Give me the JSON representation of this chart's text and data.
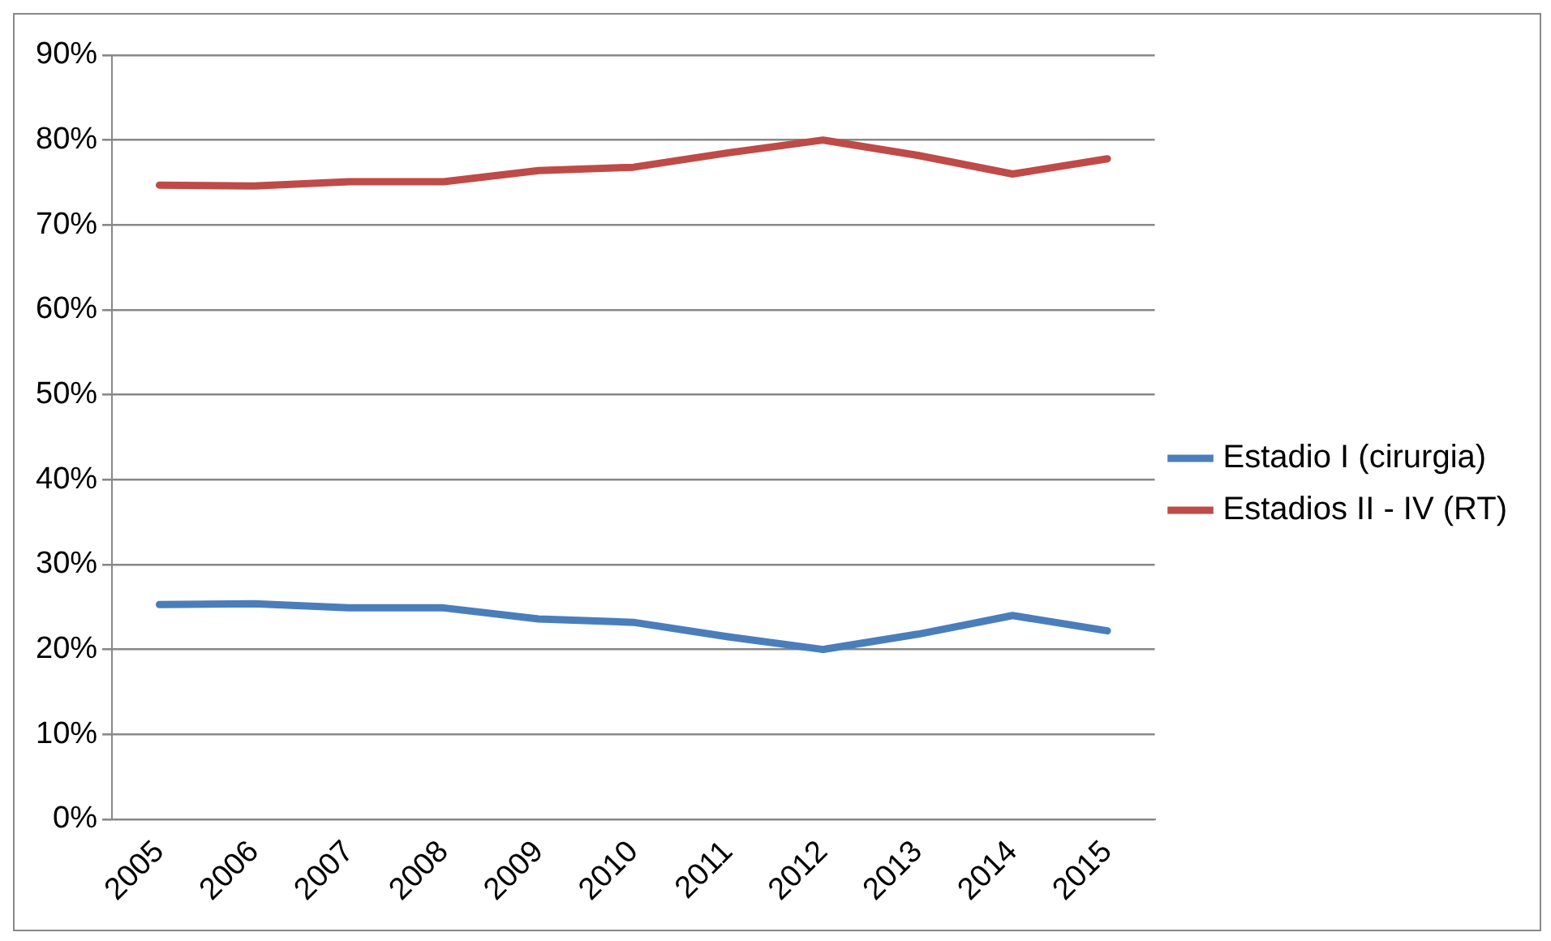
{
  "chart_data": {
    "type": "line",
    "categories": [
      "2005",
      "2006",
      "2007",
      "2008",
      "2009",
      "2010",
      "2011",
      "2012",
      "2013",
      "2014",
      "2015"
    ],
    "series": [
      {
        "name": "Estadio I (cirurgia)",
        "color": "#4a7ebb",
        "values": [
          25.3,
          25.4,
          24.9,
          24.9,
          23.6,
          23.2,
          21.5,
          20.0,
          21.8,
          24.0,
          22.2
        ]
      },
      {
        "name": "Estadios II - IV (RT)",
        "color": "#be4b48",
        "values": [
          74.7,
          74.6,
          75.1,
          75.1,
          76.4,
          76.8,
          78.5,
          80.0,
          78.2,
          76.0,
          77.8
        ]
      }
    ],
    "ylim": [
      0,
      90
    ],
    "yticks": [
      {
        "value": 0,
        "label": "0%"
      },
      {
        "value": 10,
        "label": "10%"
      },
      {
        "value": 20,
        "label": "20%"
      },
      {
        "value": 30,
        "label": "30%"
      },
      {
        "value": 40,
        "label": "40%"
      },
      {
        "value": 50,
        "label": "50%"
      },
      {
        "value": 60,
        "label": "60%"
      },
      {
        "value": 70,
        "label": "70%"
      },
      {
        "value": 80,
        "label": "80%"
      },
      {
        "value": 90,
        "label": "90%"
      }
    ],
    "grid": "y",
    "legend": "right",
    "marker": "none",
    "line_style": "solid"
  }
}
